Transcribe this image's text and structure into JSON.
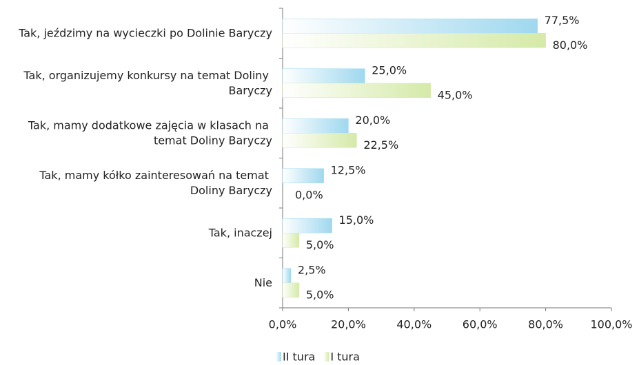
{
  "chart_data": {
    "type": "bar",
    "orientation": "horizontal",
    "categories": [
      "Tak, jeździmy na wycieczki po Dolinie Baryczy",
      "Tak, organizujemy konkursy na temat Doliny Baryczy",
      "Tak, mamy dodatkowe zajęcia w klasach na temat Doliny Baryczy",
      "Tak, mamy kółko zainteresowań na temat Doliny Baryczy",
      "Tak, inaczej",
      "Nie"
    ],
    "series": [
      {
        "name": "II tura",
        "color": "#9fd8ef",
        "values": [
          77.5,
          25,
          20,
          12.5,
          15,
          2.5
        ],
        "value_labels": [
          "77,5%",
          "25,0%",
          "20,0%",
          "12,5%",
          "15,0%",
          "2,5%"
        ]
      },
      {
        "name": "I tura",
        "color": "#d5eaa8",
        "values": [
          80,
          45,
          22.5,
          0,
          5,
          5
        ],
        "value_labels": [
          "80,0%",
          "45,0%",
          "22,5%",
          "0,0%",
          "5,0%",
          "5,0%"
        ]
      }
    ],
    "xlim": [
      0,
      100
    ],
    "xticks": [
      {
        "value": 0,
        "label": "0,0%"
      },
      {
        "value": 20,
        "label": "20,0%"
      },
      {
        "value": 40,
        "label": "40,0%"
      },
      {
        "value": 60,
        "label": "60,0%"
      },
      {
        "value": 80,
        "label": "80,0%"
      },
      {
        "value": 100,
        "label": "100,0%"
      }
    ],
    "legend": "bottom"
  }
}
